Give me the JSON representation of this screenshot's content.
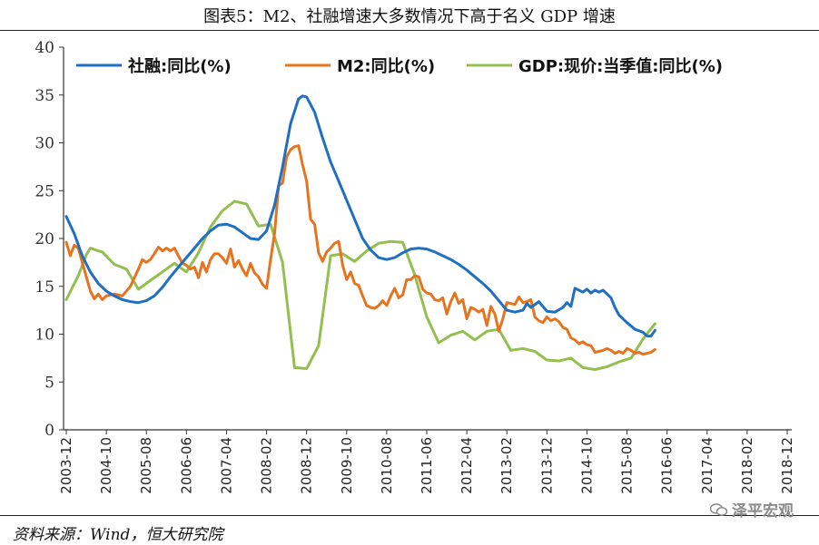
{
  "chart_data": {
    "type": "line",
    "title": "图表5：M2、社融增速大多数情况下高于名义 GDP 增速",
    "xlabel": "",
    "ylabel": "",
    "ylim": [
      0,
      40
    ],
    "yticks": [
      "0",
      "5",
      "10",
      "15",
      "20",
      "25",
      "30",
      "35",
      "40"
    ],
    "xticks": [
      "2003-12",
      "2004-10",
      "2005-08",
      "2006-06",
      "2007-04",
      "2008-02",
      "2008-12",
      "2009-10",
      "2010-08",
      "2011-06",
      "2012-04",
      "2013-02",
      "2013-12",
      "2014-10",
      "2015-08",
      "2016-06",
      "2017-04",
      "2018-02",
      "2018-12"
    ],
    "legend_position": "top",
    "series": [
      {
        "name": "社融:同比(%)",
        "color": "#1f6fc3",
        "points": [
          [
            0,
            22.3
          ],
          [
            2,
            20.5
          ],
          [
            4,
            18.2
          ],
          [
            6,
            16.5
          ],
          [
            8,
            15.3
          ],
          [
            10,
            14.5
          ],
          [
            12,
            14.0
          ],
          [
            14,
            13.6
          ],
          [
            16,
            13.4
          ],
          [
            18,
            13.3
          ],
          [
            20,
            13.5
          ],
          [
            22,
            14.0
          ],
          [
            24,
            14.9
          ],
          [
            26,
            16.0
          ],
          [
            28,
            17.0
          ],
          [
            30,
            18.0
          ],
          [
            32,
            19.0
          ],
          [
            34,
            20.0
          ],
          [
            36,
            20.8
          ],
          [
            38,
            21.4
          ],
          [
            40,
            21.5
          ],
          [
            42,
            21.2
          ],
          [
            44,
            20.6
          ],
          [
            46,
            20.0
          ],
          [
            48,
            19.9
          ],
          [
            50,
            20.8
          ],
          [
            52,
            23.5
          ],
          [
            54,
            27.5
          ],
          [
            56,
            32.0
          ],
          [
            58,
            34.6
          ],
          [
            59,
            34.9
          ],
          [
            60,
            34.8
          ],
          [
            62,
            33.2
          ],
          [
            64,
            30.5
          ],
          [
            66,
            28.0
          ],
          [
            68,
            26.0
          ],
          [
            70,
            24.0
          ],
          [
            72,
            22.0
          ],
          [
            74,
            20.0
          ],
          [
            76,
            18.8
          ],
          [
            78,
            18.0
          ],
          [
            80,
            17.8
          ],
          [
            82,
            18.0
          ],
          [
            84,
            18.5
          ],
          [
            86,
            18.9
          ],
          [
            88,
            19.0
          ],
          [
            90,
            18.9
          ],
          [
            92,
            18.6
          ],
          [
            94,
            18.2
          ],
          [
            96,
            17.8
          ],
          [
            98,
            17.3
          ],
          [
            100,
            16.7
          ],
          [
            102,
            16.0
          ],
          [
            104,
            15.3
          ],
          [
            106,
            14.5
          ],
          [
            108,
            13.5
          ],
          [
            110,
            12.5
          ],
          [
            112,
            12.3
          ],
          [
            114,
            12.5
          ],
          [
            115,
            13.2
          ],
          [
            116,
            12.8
          ],
          [
            118,
            13.4
          ],
          [
            120,
            12.4
          ],
          [
            122,
            12.3
          ],
          [
            124,
            12.8
          ],
          [
            125,
            13.3
          ],
          [
            126,
            12.9
          ],
          [
            127,
            14.8
          ],
          [
            128,
            14.6
          ],
          [
            129,
            14.4
          ],
          [
            130,
            14.7
          ],
          [
            131,
            14.3
          ],
          [
            132,
            14.6
          ],
          [
            133,
            14.4
          ],
          [
            134,
            14.6
          ],
          [
            135,
            14.2
          ],
          [
            136,
            13.8
          ],
          [
            137,
            12.8
          ],
          [
            138,
            12.0
          ],
          [
            140,
            11.2
          ],
          [
            142,
            10.5
          ],
          [
            144,
            10.2
          ],
          [
            145,
            9.8
          ],
          [
            146,
            9.8
          ],
          [
            147,
            10.4
          ]
        ]
      },
      {
        "name": "M2:同比(%)",
        "color": "#e8731e",
        "points": [
          [
            0,
            19.6
          ],
          [
            1,
            18.2
          ],
          [
            2,
            19.3
          ],
          [
            3,
            19.0
          ],
          [
            4,
            17.5
          ],
          [
            5,
            16.0
          ],
          [
            6,
            14.5
          ],
          [
            7,
            13.7
          ],
          [
            8,
            14.2
          ],
          [
            9,
            13.6
          ],
          [
            10,
            14.0
          ],
          [
            12,
            14.2
          ],
          [
            14,
            14.0
          ],
          [
            16,
            15.0
          ],
          [
            18,
            16.8
          ],
          [
            19,
            17.8
          ],
          [
            20,
            17.5
          ],
          [
            21,
            17.8
          ],
          [
            22,
            18.4
          ],
          [
            23,
            19.1
          ],
          [
            24,
            18.7
          ],
          [
            25,
            19.0
          ],
          [
            26,
            18.7
          ],
          [
            27,
            19.0
          ],
          [
            28,
            18.2
          ],
          [
            29,
            17.4
          ],
          [
            30,
            17.2
          ],
          [
            31,
            16.8
          ],
          [
            32,
            17.0
          ],
          [
            33,
            15.9
          ],
          [
            34,
            17.5
          ],
          [
            35,
            16.5
          ],
          [
            36,
            17.8
          ],
          [
            37,
            18.4
          ],
          [
            38,
            18.4
          ],
          [
            39,
            18.0
          ],
          [
            40,
            17.4
          ],
          [
            41,
            18.9
          ],
          [
            42,
            17.0
          ],
          [
            43,
            17.7
          ],
          [
            44,
            16.8
          ],
          [
            45,
            16.1
          ],
          [
            46,
            17.4
          ],
          [
            47,
            16.4
          ],
          [
            48,
            16.0
          ],
          [
            49,
            15.2
          ],
          [
            50,
            14.8
          ],
          [
            51,
            17.8
          ],
          [
            52,
            20.5
          ],
          [
            53,
            25.5
          ],
          [
            54,
            25.8
          ],
          [
            55,
            28.5
          ],
          [
            56,
            29.3
          ],
          [
            57,
            29.6
          ],
          [
            58,
            29.7
          ],
          [
            59,
            27.7
          ],
          [
            60,
            26.0
          ],
          [
            61,
            22.0
          ],
          [
            62,
            21.5
          ],
          [
            63,
            18.5
          ],
          [
            64,
            17.6
          ],
          [
            65,
            18.6
          ],
          [
            66,
            19.0
          ],
          [
            67,
            19.5
          ],
          [
            68,
            19.7
          ],
          [
            69,
            17.2
          ],
          [
            70,
            15.7
          ],
          [
            71,
            16.5
          ],
          [
            72,
            15.3
          ],
          [
            73,
            15.1
          ],
          [
            74,
            14.0
          ],
          [
            75,
            13.0
          ],
          [
            76,
            12.8
          ],
          [
            77,
            12.7
          ],
          [
            78,
            13.0
          ],
          [
            79,
            13.5
          ],
          [
            80,
            13.0
          ],
          [
            81,
            14.0
          ],
          [
            82,
            14.8
          ],
          [
            83,
            13.8
          ],
          [
            84,
            14.1
          ],
          [
            85,
            15.7
          ],
          [
            86,
            15.7
          ],
          [
            87,
            16.1
          ],
          [
            88,
            16.0
          ],
          [
            89,
            14.7
          ],
          [
            90,
            14.3
          ],
          [
            91,
            14.2
          ],
          [
            92,
            13.6
          ],
          [
            93,
            13.5
          ],
          [
            94,
            13.8
          ],
          [
            95,
            12.1
          ],
          [
            96,
            13.4
          ],
          [
            97,
            14.3
          ],
          [
            98,
            13.2
          ],
          [
            99,
            13.6
          ],
          [
            100,
            11.6
          ],
          [
            101,
            12.8
          ],
          [
            102,
            12.6
          ],
          [
            103,
            12.3
          ],
          [
            104,
            12.6
          ],
          [
            105,
            10.9
          ],
          [
            106,
            12.9
          ],
          [
            107,
            12.1
          ],
          [
            108,
            10.3
          ],
          [
            109,
            11.6
          ],
          [
            110,
            13.3
          ],
          [
            111,
            13.2
          ],
          [
            112,
            13.1
          ],
          [
            113,
            13.9
          ],
          [
            114,
            13.3
          ],
          [
            115,
            13.4
          ],
          [
            116,
            13.6
          ],
          [
            117,
            11.8
          ],
          [
            118,
            11.4
          ],
          [
            119,
            11.2
          ],
          [
            120,
            11.8
          ],
          [
            121,
            11.4
          ],
          [
            122,
            11.6
          ],
          [
            123,
            11.3
          ],
          [
            124,
            10.7
          ],
          [
            125,
            10.5
          ],
          [
            126,
            9.6
          ],
          [
            127,
            9.4
          ],
          [
            128,
            9.0
          ],
          [
            129,
            9.2
          ],
          [
            130,
            8.9
          ],
          [
            131,
            8.8
          ],
          [
            132,
            8.1
          ],
          [
            133,
            8.2
          ],
          [
            134,
            8.3
          ],
          [
            135,
            8.5
          ],
          [
            136,
            8.3
          ],
          [
            137,
            8.0
          ],
          [
            138,
            8.2
          ],
          [
            139,
            8.0
          ],
          [
            140,
            8.5
          ],
          [
            141,
            8.3
          ],
          [
            142,
            8.0
          ],
          [
            143,
            8.1
          ],
          [
            144,
            7.9
          ],
          [
            145,
            8.0
          ],
          [
            146,
            8.1
          ],
          [
            147,
            8.4
          ]
        ]
      },
      {
        "name": "GDP:现价:当季值:同比(%)",
        "color": "#92bf4f",
        "points": [
          [
            0,
            13.6
          ],
          [
            3,
            16.1
          ],
          [
            5,
            18.3
          ],
          [
            6,
            19.0
          ],
          [
            8,
            18.7
          ],
          [
            9,
            18.6
          ],
          [
            12,
            17.3
          ],
          [
            15,
            16.8
          ],
          [
            18,
            14.7
          ],
          [
            21,
            15.6
          ],
          [
            24,
            16.5
          ],
          [
            27,
            17.4
          ],
          [
            30,
            16.5
          ],
          [
            33,
            18.5
          ],
          [
            36,
            21.2
          ],
          [
            39,
            22.9
          ],
          [
            42,
            23.9
          ],
          [
            45,
            23.6
          ],
          [
            48,
            21.3
          ],
          [
            51,
            21.5
          ],
          [
            54,
            17.5
          ],
          [
            57,
            6.5
          ],
          [
            60,
            6.4
          ],
          [
            63,
            8.8
          ],
          [
            66,
            18.2
          ],
          [
            69,
            18.4
          ],
          [
            72,
            17.6
          ],
          [
            75,
            18.7
          ],
          [
            78,
            19.5
          ],
          [
            81,
            19.7
          ],
          [
            84,
            19.6
          ],
          [
            87,
            16.2
          ],
          [
            90,
            11.8
          ],
          [
            93,
            9.1
          ],
          [
            96,
            9.9
          ],
          [
            99,
            10.3
          ],
          [
            102,
            9.4
          ],
          [
            105,
            10.3
          ],
          [
            108,
            10.5
          ],
          [
            111,
            8.3
          ],
          [
            114,
            8.5
          ],
          [
            117,
            8.2
          ],
          [
            120,
            7.3
          ],
          [
            123,
            7.2
          ],
          [
            126,
            7.5
          ],
          [
            129,
            6.5
          ],
          [
            132,
            6.3
          ],
          [
            135,
            6.6
          ],
          [
            138,
            7.1
          ],
          [
            141,
            7.5
          ],
          [
            144,
            9.5
          ],
          [
            147,
            11.1
          ]
        ]
      }
    ]
  },
  "source": "资料来源：Wind，恒大研究院",
  "watermark": "泽平宏观",
  "watermark_icon": "wechat-icon"
}
